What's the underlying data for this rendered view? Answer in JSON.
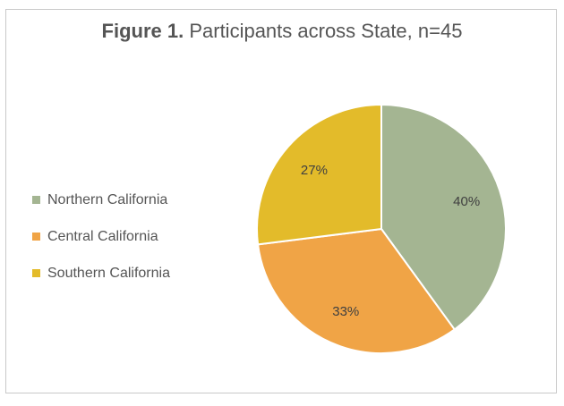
{
  "chart_data": {
    "type": "pie",
    "title_prefix": "Figure 1.",
    "title_rest": " Participants across State, n=45",
    "categories": [
      "Northern California",
      "Central California",
      "Southern California"
    ],
    "values": [
      40,
      33,
      27
    ],
    "labels": [
      "40%",
      "33%",
      "27%"
    ],
    "colors": [
      "#a4b592",
      "#f0a446",
      "#e3bb2a"
    ],
    "legend_position": "left"
  }
}
